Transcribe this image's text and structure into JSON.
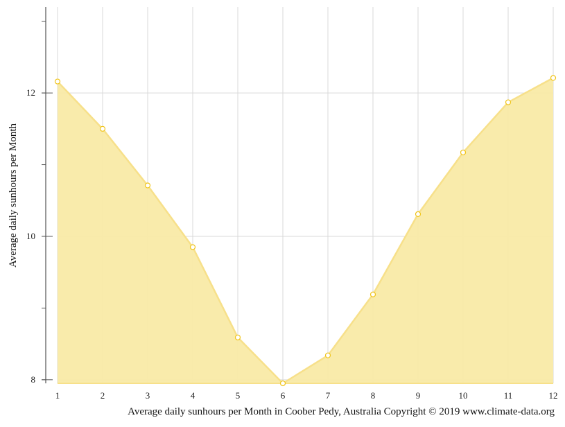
{
  "chart_data": {
    "type": "area",
    "x": [
      1,
      2,
      3,
      4,
      5,
      6,
      7,
      8,
      9,
      10,
      11,
      12
    ],
    "series": [
      {
        "values": [
          12.16,
          11.5,
          10.71,
          9.85,
          8.59,
          7.95,
          8.34,
          9.19,
          10.31,
          11.17,
          11.87,
          12.21
        ]
      }
    ],
    "title": "",
    "xlabel": "",
    "ylabel": "Average daily sunhours per Month",
    "caption": "Average daily sunhours per Month in Coober Pedy, Australia Copyright © 2019 www.climate-data.org",
    "x_ticks": [
      "1",
      "2",
      "3",
      "4",
      "5",
      "6",
      "7",
      "8",
      "9",
      "10",
      "11",
      "12"
    ],
    "y_ticks": [
      "8",
      "10",
      "12"
    ],
    "ylim": [
      7.95,
      13.2
    ],
    "xlim": [
      1,
      12
    ],
    "grid": true,
    "legend": "none",
    "colors": {
      "fill": "#f9eaa6",
      "line": "#f7e08a",
      "marker_stroke": "#f0c419",
      "grid": "#d9d9d9",
      "axis": "#555555"
    }
  }
}
